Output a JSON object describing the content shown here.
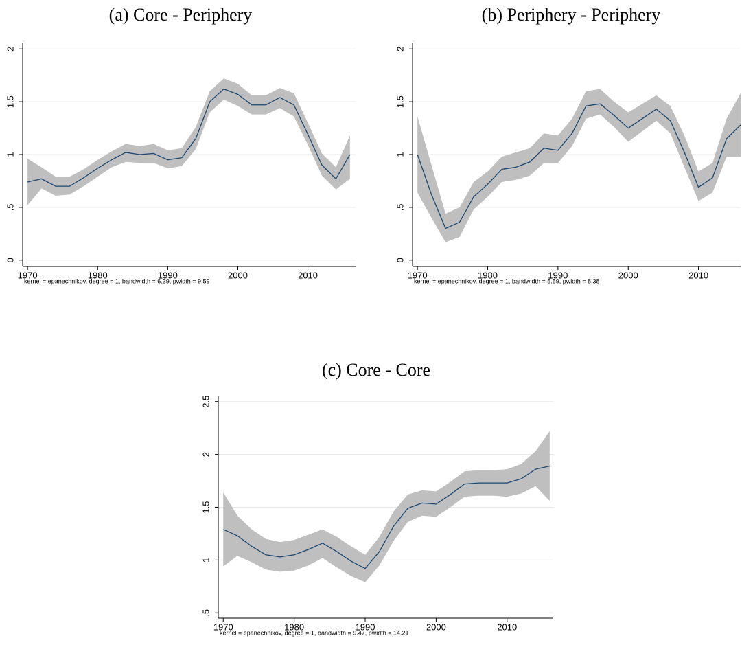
{
  "chart_data": [
    {
      "type": "line",
      "title": "(a) Core - Periphery",
      "note": "kernel = epanechnikov, degree = 1, bandwidth = 6.39, pwidth = 9.59",
      "x": [
        1970,
        1972,
        1974,
        1976,
        1978,
        1980,
        1982,
        1984,
        1986,
        1988,
        1990,
        1992,
        1994,
        1996,
        1998,
        2000,
        2002,
        2004,
        2006,
        2008,
        2010,
        2012,
        2014,
        2016
      ],
      "values": [
        0.74,
        0.77,
        0.7,
        0.7,
        0.78,
        0.87,
        0.95,
        1.02,
        1.0,
        1.01,
        0.95,
        0.97,
        1.15,
        1.5,
        1.62,
        1.57,
        1.47,
        1.47,
        1.54,
        1.47,
        1.19,
        0.9,
        0.77,
        1.0
      ],
      "ci_lower": [
        0.52,
        0.68,
        0.61,
        0.62,
        0.7,
        0.79,
        0.88,
        0.93,
        0.92,
        0.92,
        0.87,
        0.89,
        1.05,
        1.4,
        1.52,
        1.46,
        1.38,
        1.38,
        1.44,
        1.36,
        1.09,
        0.8,
        0.67,
        0.77
      ],
      "ci_upper": [
        0.96,
        0.88,
        0.79,
        0.79,
        0.86,
        0.95,
        1.03,
        1.1,
        1.08,
        1.1,
        1.04,
        1.06,
        1.26,
        1.6,
        1.72,
        1.67,
        1.56,
        1.56,
        1.63,
        1.58,
        1.3,
        1.01,
        0.88,
        1.18
      ],
      "color": "#1a476f",
      "band_color": "#bfbfbf",
      "xlim": [
        1969.3,
        2016.8
      ],
      "xticks": [
        1970,
        1980,
        1990,
        2000,
        2010
      ],
      "ylim": [
        -0.06,
        2.06
      ],
      "yticks": [
        0,
        {
          "value": 0.5,
          "label": ".5"
        },
        1,
        1.5,
        2
      ],
      "grid": true
    },
    {
      "type": "line",
      "title": "(b) Periphery - Periphery",
      "note": "kernel = epanechnikov, degree = 1, bandwidth = 5.59, pwidth = 8.38",
      "x": [
        1970,
        1972,
        1974,
        1976,
        1978,
        1980,
        1982,
        1984,
        1986,
        1988,
        1990,
        1992,
        1994,
        1996,
        1998,
        2000,
        2002,
        2004,
        2006,
        2008,
        2010,
        2012,
        2014,
        2016
      ],
      "values": [
        1.0,
        0.62,
        0.3,
        0.36,
        0.6,
        0.72,
        0.86,
        0.88,
        0.93,
        1.06,
        1.04,
        1.2,
        1.46,
        1.48,
        1.37,
        1.25,
        1.34,
        1.43,
        1.32,
        1.02,
        0.69,
        0.78,
        1.15,
        1.28
      ],
      "ci_lower": [
        0.64,
        0.4,
        0.17,
        0.22,
        0.48,
        0.6,
        0.74,
        0.76,
        0.8,
        0.92,
        0.92,
        1.08,
        1.34,
        1.38,
        1.26,
        1.12,
        1.22,
        1.32,
        1.2,
        0.88,
        0.56,
        0.64,
        0.98,
        0.98
      ],
      "ci_upper": [
        1.36,
        0.9,
        0.44,
        0.5,
        0.74,
        0.84,
        0.98,
        1.02,
        1.06,
        1.2,
        1.18,
        1.34,
        1.6,
        1.62,
        1.5,
        1.4,
        1.48,
        1.56,
        1.46,
        1.18,
        0.84,
        0.92,
        1.34,
        1.58
      ],
      "color": "#1a476f",
      "band_color": "#bfbfbf",
      "xlim": [
        1969.3,
        2016
      ],
      "xticks": [
        1970,
        1980,
        1990,
        2000,
        2010
      ],
      "ylim": [
        -0.06,
        2.06
      ],
      "yticks": [
        0,
        {
          "value": 0.5,
          "label": ".5"
        },
        1,
        1.5,
        2
      ],
      "grid": true
    },
    {
      "type": "line",
      "title": "(c) Core - Core",
      "note": "kernel = epanechnikov, degree = 1, bandwidth = 9.47, pwidth = 14.21",
      "x": [
        1970,
        1972,
        1974,
        1976,
        1978,
        1980,
        1982,
        1984,
        1986,
        1988,
        1990,
        1992,
        1994,
        1996,
        1998,
        2000,
        2002,
        2004,
        2006,
        2008,
        2010,
        2012,
        2014,
        2016
      ],
      "values": [
        1.29,
        1.23,
        1.13,
        1.05,
        1.03,
        1.05,
        1.1,
        1.16,
        1.08,
        0.99,
        0.92,
        1.08,
        1.32,
        1.49,
        1.54,
        1.53,
        1.62,
        1.72,
        1.73,
        1.73,
        1.73,
        1.77,
        1.86,
        1.89
      ],
      "ci_lower": [
        0.94,
        1.04,
        0.98,
        0.91,
        0.89,
        0.9,
        0.95,
        1.02,
        0.93,
        0.85,
        0.79,
        0.95,
        1.18,
        1.36,
        1.42,
        1.41,
        1.5,
        1.6,
        1.61,
        1.61,
        1.6,
        1.63,
        1.7,
        1.56
      ],
      "ci_upper": [
        1.64,
        1.42,
        1.29,
        1.2,
        1.17,
        1.19,
        1.24,
        1.29,
        1.22,
        1.13,
        1.05,
        1.22,
        1.46,
        1.62,
        1.66,
        1.65,
        1.74,
        1.84,
        1.85,
        1.85,
        1.86,
        1.91,
        2.03,
        2.22
      ],
      "color": "#1a476f",
      "band_color": "#bfbfbf",
      "xlim": [
        1969.3,
        2016.5
      ],
      "xticks": [
        1970,
        1980,
        1990,
        2000,
        2010
      ],
      "ylim": [
        0.45,
        2.55
      ],
      "yticks": [
        {
          "value": 0.5,
          "label": ".5"
        },
        1,
        1.5,
        2,
        2.5
      ],
      "grid": true
    }
  ]
}
